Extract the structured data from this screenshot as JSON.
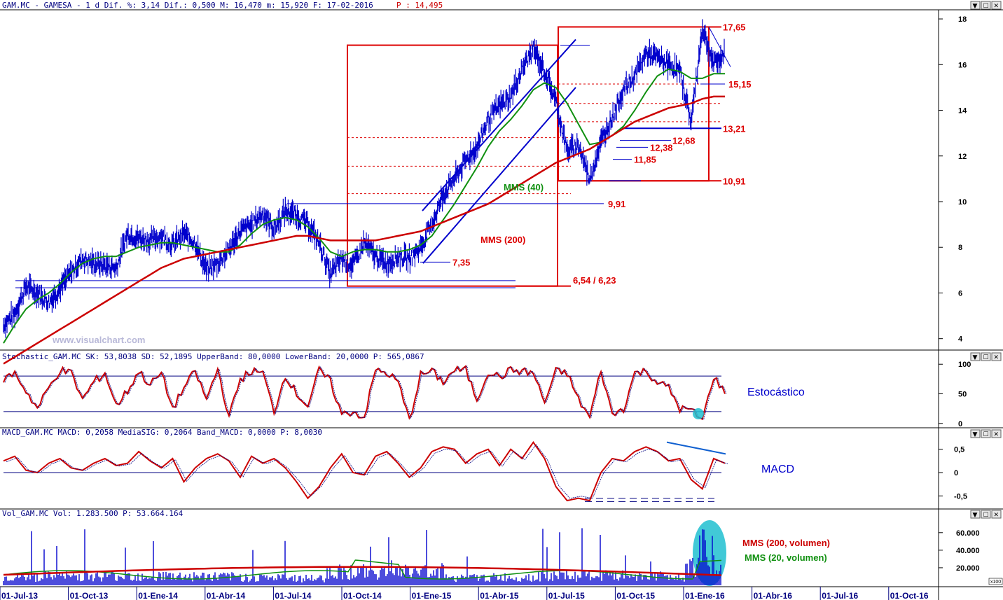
{
  "header": {
    "price_line": "GAM.MC - GAMESA -  1 d Dif. %: 3,14 Dif.: 0,500 M: 16,470 m: 15,920 F: 17-02-2016",
    "price_p": "P : 14,495",
    "stoch_line": "Stochastic_GAM.MC SK: 53,8038 SD: 52,1895 UpperBand: 80,0000 LowerBand: 20,0000 P: 565,0867",
    "macd_line": "MACD_GAM.MC MACD: 0,2058 MediaSIG: 0,2064 Band_MACD: 0,0000 P: 8,0030",
    "vol_line": "Vol_GAM.MC Vol: 1.283.500 P: 53.664.164"
  },
  "watermark": "www.visualchart.com",
  "window_buttons": [
    "▼",
    "☐",
    "✕"
  ],
  "colors": {
    "price": "#0000cc",
    "mms40": "#109010",
    "mms200": "#cc0000",
    "stoch": "#cc0000",
    "macd": "#cc0000",
    "volume": "#0000cc",
    "grid_v": "#000080",
    "highlight": "#20c0d0"
  },
  "chart_data": [
    {
      "type": "line",
      "panel": "price",
      "x_ticks": [
        "01-Jul-13",
        "01-Oct-13",
        "01-Ene-14",
        "01-Abr-14",
        "01-Jul-14",
        "01-Oct-14",
        "01-Ene-15",
        "01-Abr-15",
        "01-Jul-15",
        "01-Oct-15",
        "01-Ene-16",
        "01-Abr-16",
        "01-Jul-16",
        "01-Oct-16"
      ],
      "y_ticks": [
        "18",
        "16",
        "14",
        "12",
        "10",
        "8",
        "6",
        "4"
      ],
      "ylim": [
        3.5,
        18.4
      ],
      "series": [
        {
          "name": "",
          "role": "price",
          "values": [
            4.6,
            5.1,
            6.3,
            6.0,
            5.6,
            6.2,
            6.9,
            7.5,
            7.3,
            7.2,
            7.1,
            8.6,
            8.4,
            8.3,
            8.5,
            8.1,
            8.6,
            8.2,
            7.0,
            7.3,
            7.9,
            8.7,
            9.0,
            9.5,
            8.8,
            9.6,
            9.4,
            9.0,
            8.2,
            6.8,
            7.5,
            7.2,
            8.2,
            7.6,
            7.3,
            7.6,
            7.5,
            8.0,
            9.0,
            10.3,
            11.0,
            11.8,
            12.4,
            13.6,
            14.2,
            14.6,
            15.8,
            16.7,
            15.7,
            14.4,
            12.2,
            12.5,
            11.0,
            12.6,
            13.7,
            14.9,
            15.5,
            16.5,
            16.3,
            16.0,
            15.7,
            13.5,
            17.6,
            16.0,
            16.5
          ]
        },
        {
          "name": "MMS (40)",
          "role": "mms40",
          "values": [
            3.8,
            4.6,
            5.3,
            5.7,
            6.0,
            6.4,
            6.9,
            7.3,
            7.5,
            7.6,
            7.6,
            7.8,
            8.0,
            8.1,
            8.2,
            8.2,
            8.1,
            8.0,
            7.9,
            7.8,
            7.8,
            8.1,
            8.6,
            9.0,
            9.2,
            9.3,
            9.2,
            8.9,
            8.4,
            7.8,
            7.6,
            7.8,
            7.9,
            7.9,
            7.8,
            7.8,
            7.9,
            8.1,
            8.5,
            9.2,
            9.9,
            10.7,
            11.5,
            12.4,
            13.1,
            13.6,
            14.2,
            14.9,
            15.2,
            15.0,
            14.3,
            13.4,
            12.5,
            12.6,
            12.9,
            13.3,
            14.0,
            14.8,
            15.5,
            15.8,
            15.7,
            15.4,
            15.4,
            15.6,
            15.6
          ]
        },
        {
          "name": "MMS (200)",
          "role": "mms200",
          "values": [
            2.9,
            3.2,
            3.5,
            3.8,
            4.1,
            4.4,
            4.7,
            5.0,
            5.3,
            5.6,
            5.9,
            6.2,
            6.5,
            6.8,
            7.1,
            7.3,
            7.5,
            7.6,
            7.7,
            7.8,
            7.9,
            8.0,
            8.1,
            8.2,
            8.3,
            8.4,
            8.5,
            8.5,
            8.4,
            8.3,
            8.3,
            8.3,
            8.3,
            8.3,
            8.4,
            8.5,
            8.6,
            8.7,
            8.9,
            9.1,
            9.3,
            9.5,
            9.7,
            9.9,
            10.2,
            10.5,
            10.8,
            11.1,
            11.4,
            11.7,
            11.9,
            12.1,
            12.3,
            12.6,
            12.9,
            13.2,
            13.5,
            13.7,
            13.9,
            14.1,
            14.2,
            14.3,
            14.5,
            14.6,
            14.6
          ]
        }
      ],
      "annotations": [
        {
          "text": "17,65",
          "value": 17.65
        },
        {
          "text": "15,15",
          "value": 15.15
        },
        {
          "text": "13,21",
          "value": 13.21
        },
        {
          "text": "12,68",
          "value": 12.68
        },
        {
          "text": "12,38",
          "value": 12.38
        },
        {
          "text": "11,85",
          "value": 11.85
        },
        {
          "text": "10,91",
          "value": 10.91
        },
        {
          "text": "9,91",
          "value": 9.91
        },
        {
          "text": "7,35",
          "value": 7.35
        },
        {
          "text": "6,54 / 6,23",
          "value": 6.54
        },
        {
          "text": "MMS (40)",
          "value": null
        },
        {
          "text": "MMS (200)",
          "value": null
        }
      ]
    },
    {
      "type": "line",
      "panel": "stochastic",
      "title": "Estocástico",
      "y_ticks": [
        "100",
        "50",
        "0"
      ],
      "ylim": [
        -5,
        105
      ],
      "bands": [
        80,
        20
      ],
      "values": [
        75,
        85,
        55,
        25,
        60,
        90,
        85,
        40,
        70,
        85,
        30,
        55,
        88,
        65,
        85,
        25,
        60,
        88,
        40,
        92,
        10,
        75,
        88,
        85,
        20,
        82,
        50,
        30,
        90,
        70,
        15,
        20,
        10,
        90,
        85,
        70,
        5,
        82,
        88,
        70,
        90,
        90,
        40,
        88,
        78,
        90,
        88,
        85,
        35,
        88,
        85,
        40,
        10,
        90,
        15,
        25,
        85,
        88,
        70,
        60,
        25,
        22,
        5,
        80,
        50
      ]
    },
    {
      "type": "line",
      "panel": "macd",
      "title": "MACD",
      "y_ticks": [
        "0,5",
        "0",
        "-0,5"
      ],
      "ylim": [
        -0.75,
        0.75
      ],
      "values": [
        0.25,
        0.35,
        0.05,
        0.0,
        0.2,
        0.3,
        0.1,
        0.05,
        0.2,
        0.3,
        0.15,
        0.2,
        0.45,
        0.25,
        0.1,
        0.3,
        -0.2,
        0.1,
        0.3,
        0.4,
        0.25,
        -0.1,
        0.35,
        0.2,
        0.3,
        0.1,
        -0.2,
        -0.55,
        -0.3,
        0.1,
        0.4,
        0.0,
        -0.05,
        0.35,
        0.45,
        0.2,
        -0.1,
        0.1,
        0.45,
        0.55,
        0.5,
        0.2,
        0.4,
        0.5,
        0.15,
        0.5,
        0.3,
        0.65,
        0.3,
        -0.3,
        -0.6,
        -0.55,
        -0.6,
        0.0,
        0.3,
        0.25,
        0.45,
        0.55,
        0.45,
        0.25,
        0.3,
        -0.15,
        -0.35,
        0.3,
        0.2
      ]
    },
    {
      "type": "bar",
      "panel": "volume",
      "y_ticks": [
        "60.000",
        "40.000",
        "20.000"
      ],
      "ylim": [
        0,
        75000
      ],
      "series": [
        {
          "name": "MMS (200, volumen)",
          "role": "vol200"
        },
        {
          "name": "MMS (20, volumen)",
          "role": "vol20"
        }
      ]
    }
  ]
}
